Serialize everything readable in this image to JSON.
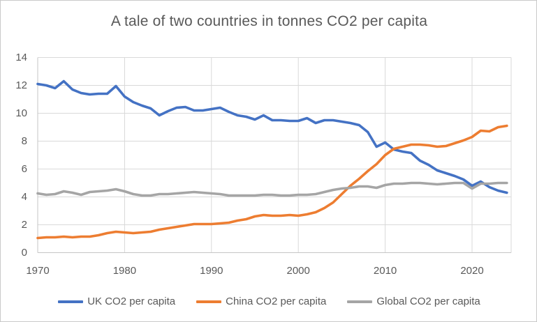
{
  "chart_data": {
    "type": "line",
    "title": "A tale of two countries in tonnes CO2 per capita",
    "xlabel": "",
    "ylabel": "",
    "ylim": [
      0,
      14
    ],
    "ytick_interval": 2,
    "yticks": [
      0,
      2,
      4,
      6,
      8,
      10,
      12,
      14
    ],
    "xticks": [
      1970,
      1980,
      1990,
      2000,
      2010,
      2020
    ],
    "x_range": [
      1970,
      2024
    ],
    "grid": true,
    "legend_position": "bottom",
    "text_color": "#595959",
    "gridline_color": "#d9d9d9",
    "axis_line_color": "#c6c6c6",
    "x": [
      1970,
      1971,
      1972,
      1973,
      1974,
      1975,
      1976,
      1977,
      1978,
      1979,
      1980,
      1981,
      1982,
      1983,
      1984,
      1985,
      1986,
      1987,
      1988,
      1989,
      1990,
      1991,
      1992,
      1993,
      1994,
      1995,
      1996,
      1997,
      1998,
      1999,
      2000,
      2001,
      2002,
      2003,
      2004,
      2005,
      2006,
      2007,
      2008,
      2009,
      2010,
      2011,
      2012,
      2013,
      2014,
      2015,
      2016,
      2017,
      2018,
      2019,
      2020,
      2021,
      2022,
      2023,
      2024
    ],
    "series": [
      {
        "name": "UK CO2 per capita",
        "color": "#4472c4",
        "values": [
          12.1,
          12.0,
          11.8,
          12.3,
          11.7,
          11.45,
          11.35,
          11.4,
          11.4,
          11.95,
          11.2,
          10.8,
          10.55,
          10.35,
          9.85,
          10.15,
          10.4,
          10.45,
          10.2,
          10.2,
          10.3,
          10.4,
          10.1,
          9.85,
          9.75,
          9.55,
          9.85,
          9.5,
          9.5,
          9.45,
          9.45,
          9.65,
          9.3,
          9.5,
          9.5,
          9.4,
          9.3,
          9.15,
          8.65,
          7.6,
          7.9,
          7.4,
          7.25,
          7.15,
          6.6,
          6.3,
          5.9,
          5.7,
          5.5,
          5.25,
          4.8,
          5.1,
          4.7,
          4.45,
          4.3
        ]
      },
      {
        "name": "China CO2 per capita",
        "color": "#ed7d31",
        "values": [
          1.05,
          1.1,
          1.1,
          1.15,
          1.1,
          1.15,
          1.15,
          1.25,
          1.4,
          1.5,
          1.45,
          1.4,
          1.45,
          1.5,
          1.65,
          1.75,
          1.85,
          1.95,
          2.05,
          2.05,
          2.05,
          2.1,
          2.15,
          2.3,
          2.4,
          2.6,
          2.7,
          2.65,
          2.65,
          2.7,
          2.65,
          2.75,
          2.9,
          3.2,
          3.6,
          4.2,
          4.8,
          5.3,
          5.85,
          6.35,
          7.0,
          7.45,
          7.6,
          7.75,
          7.75,
          7.7,
          7.6,
          7.65,
          7.85,
          8.05,
          8.3,
          8.75,
          8.7,
          9.0,
          9.1
        ]
      },
      {
        "name": "Global CO2 per capita",
        "color": "#a5a5a5",
        "values": [
          4.25,
          4.15,
          4.2,
          4.4,
          4.3,
          4.15,
          4.35,
          4.4,
          4.45,
          4.55,
          4.4,
          4.2,
          4.1,
          4.1,
          4.2,
          4.2,
          4.25,
          4.3,
          4.35,
          4.3,
          4.25,
          4.2,
          4.1,
          4.1,
          4.1,
          4.1,
          4.15,
          4.15,
          4.1,
          4.1,
          4.15,
          4.15,
          4.2,
          4.35,
          4.5,
          4.6,
          4.65,
          4.75,
          4.75,
          4.65,
          4.85,
          4.95,
          4.95,
          5.0,
          5.0,
          4.95,
          4.9,
          4.95,
          5.0,
          5.0,
          4.6,
          4.95,
          4.95,
          5.0,
          5.0
        ]
      }
    ]
  }
}
